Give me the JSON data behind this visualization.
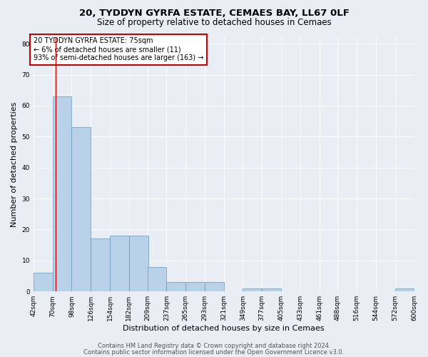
{
  "title1": "20, TYDDYN GYRFA ESTATE, CEMAES BAY, LL67 0LF",
  "title2": "Size of property relative to detached houses in Cemaes",
  "xlabel": "Distribution of detached houses by size in Cemaes",
  "ylabel": "Number of detached properties",
  "bar_color": "#b8d0e8",
  "bar_edge_color": "#6699bb",
  "background_color": "#e8eef4",
  "plot_bg_color": "#e8eef4",
  "grid_color": "#ffffff",
  "annotation_text": "20 TYDDYN GYRFA ESTATE: 75sqm\n← 6% of detached houses are smaller (11)\n93% of semi-detached houses are larger (163) →",
  "annotation_box_color": "#ffffff",
  "annotation_box_edge": "#cc0000",
  "vline_x": 75,
  "vline_color": "#cc0000",
  "bins_left": [
    42,
    70,
    98,
    126,
    154,
    182,
    209,
    237,
    265,
    293,
    321,
    349,
    377,
    405,
    433,
    461,
    488,
    516,
    544,
    572
  ],
  "bin_width": 28,
  "bar_heights": [
    6,
    63,
    53,
    17,
    18,
    18,
    8,
    3,
    3,
    3,
    0,
    1,
    1,
    0,
    0,
    0,
    0,
    0,
    0,
    1
  ],
  "last_tick": 600,
  "ylim": [
    0,
    82
  ],
  "yticks": [
    0,
    10,
    20,
    30,
    40,
    50,
    60,
    70,
    80
  ],
  "xtick_labels": [
    "42sqm",
    "70sqm",
    "98sqm",
    "126sqm",
    "154sqm",
    "182sqm",
    "209sqm",
    "237sqm",
    "265sqm",
    "293sqm",
    "321sqm",
    "349sqm",
    "377sqm",
    "405sqm",
    "433sqm",
    "461sqm",
    "488sqm",
    "516sqm",
    "544sqm",
    "572sqm",
    "600sqm"
  ],
  "footer1": "Contains HM Land Registry data © Crown copyright and database right 2024.",
  "footer2": "Contains public sector information licensed under the Open Government Licence v3.0.",
  "title1_fontsize": 9.5,
  "title2_fontsize": 8.5,
  "xlabel_fontsize": 8,
  "ylabel_fontsize": 8,
  "tick_fontsize": 6.5,
  "footer_fontsize": 6,
  "annotation_fontsize": 7
}
